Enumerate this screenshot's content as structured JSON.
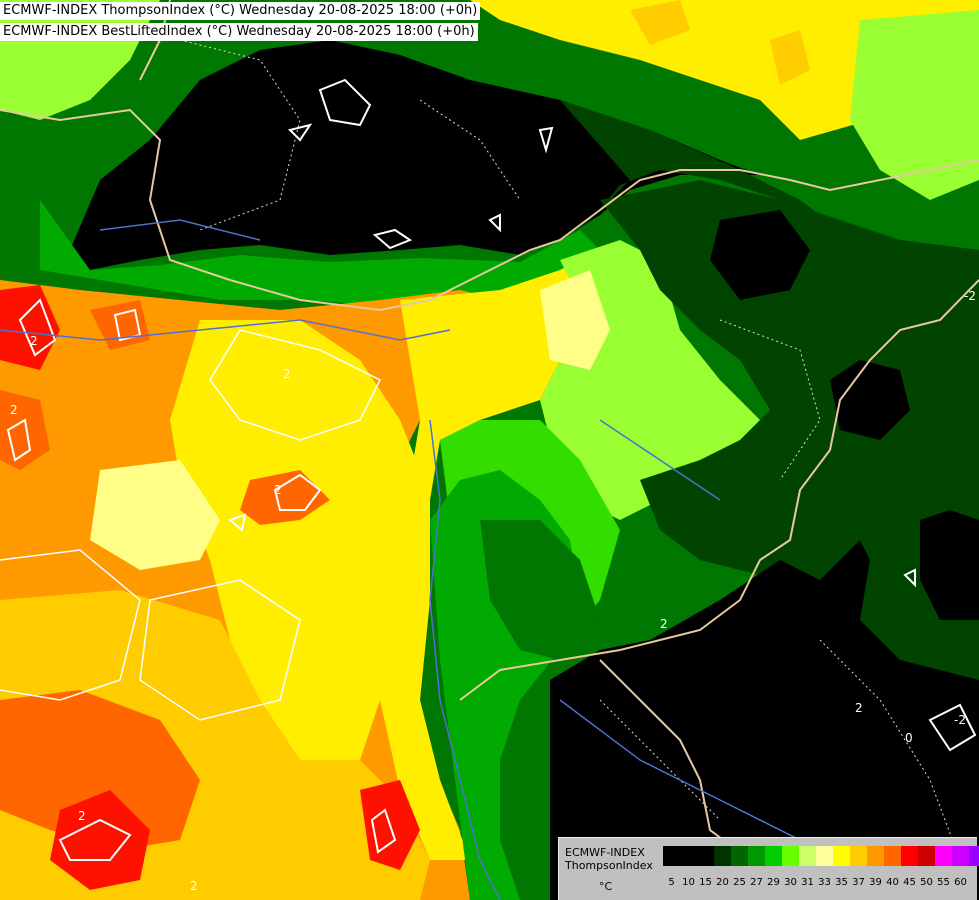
{
  "header": {
    "line1": "ECMWF-INDEX ThompsonIndex (°C) Wednesday 20-08-2025 18:00 (+0h)",
    "line2": "ECMWF-INDEX BestLiftedIndex (°C) Wednesday 20-08-2025 18:00 (+0h)"
  },
  "legend": {
    "title_line1": "ECMWF-INDEX",
    "title_line2": "ThompsonIndex",
    "unit": "°C",
    "ticks": [
      "5",
      "10",
      "15",
      "20",
      "25",
      "27",
      "29",
      "30",
      "31",
      "33",
      "35",
      "37",
      "39",
      "40",
      "45",
      "50",
      "55",
      "60"
    ],
    "colors": [
      "#000000",
      "#000000",
      "#000000",
      "#003300",
      "#006600",
      "#009900",
      "#00cc00",
      "#66ff00",
      "#ccff66",
      "#ffff99",
      "#ffff00",
      "#ffcc00",
      "#ff9900",
      "#ff6600",
      "#ff0000",
      "#cc0000",
      "#ff00ff",
      "#cc00ff",
      "#9900ff",
      "#6600ff",
      "#0000ff"
    ]
  },
  "map": {
    "contour_labels": [
      "2",
      "2",
      "2",
      "2",
      "2",
      "2",
      "2",
      "2",
      "0",
      "-2",
      "-2"
    ],
    "colors": {
      "black": "#000000",
      "dark_green": "#004400",
      "green": "#007700",
      "mid_green": "#00aa00",
      "bright_green": "#33dd00",
      "lime": "#99ff33",
      "light_yellow": "#ffff88",
      "yellow": "#ffee00",
      "orange_yellow": "#ffcc00",
      "orange": "#ff9900",
      "dark_orange": "#ff6600",
      "red": "#ff1100",
      "border": "#e8c8a0",
      "river": "#5070d0",
      "contour": "#ffffff"
    }
  }
}
